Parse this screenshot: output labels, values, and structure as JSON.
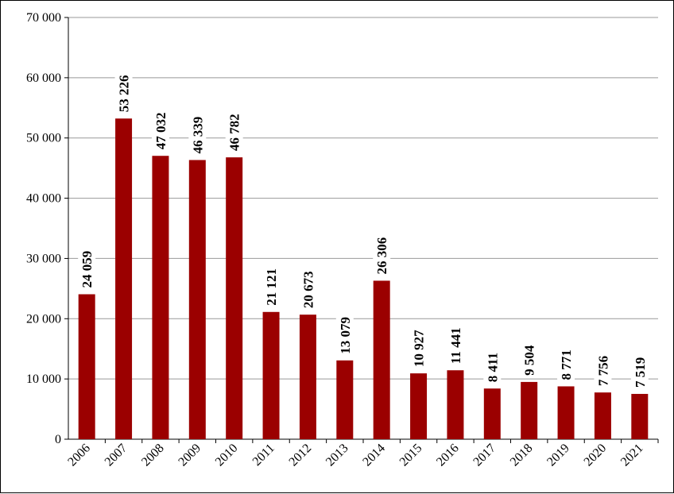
{
  "chart_data": {
    "type": "bar",
    "categories": [
      "2006",
      "2007",
      "2008",
      "2009",
      "2010",
      "2011",
      "2012",
      "2013",
      "2014",
      "2015",
      "2016",
      "2017",
      "2018",
      "2019",
      "2020",
      "2021"
    ],
    "values": [
      24059,
      53226,
      47032,
      46339,
      46782,
      21121,
      20673,
      13079,
      26306,
      10927,
      11441,
      8411,
      9504,
      8771,
      7756,
      7519
    ],
    "data_labels": [
      "24 059",
      "53 226",
      "47 032",
      "46 339",
      "46 782",
      "21 121",
      "20 673",
      "13 079",
      "26 306",
      "10 927",
      "11 441",
      "8 411",
      "9 504",
      "8 771",
      "7 756",
      "7 519"
    ],
    "y_ticks": [
      0,
      10000,
      20000,
      30000,
      40000,
      50000,
      60000,
      70000
    ],
    "y_tick_labels": [
      "0",
      "10 000",
      "20 000",
      "30 000",
      "40 000",
      "50 000",
      "60 000",
      "70 000"
    ],
    "ylim": [
      0,
      70000
    ],
    "title": "",
    "xlabel": "",
    "ylabel": "",
    "grid": true,
    "legend": "none",
    "bar_color": "#9B0000",
    "grid_color": "#999999"
  }
}
